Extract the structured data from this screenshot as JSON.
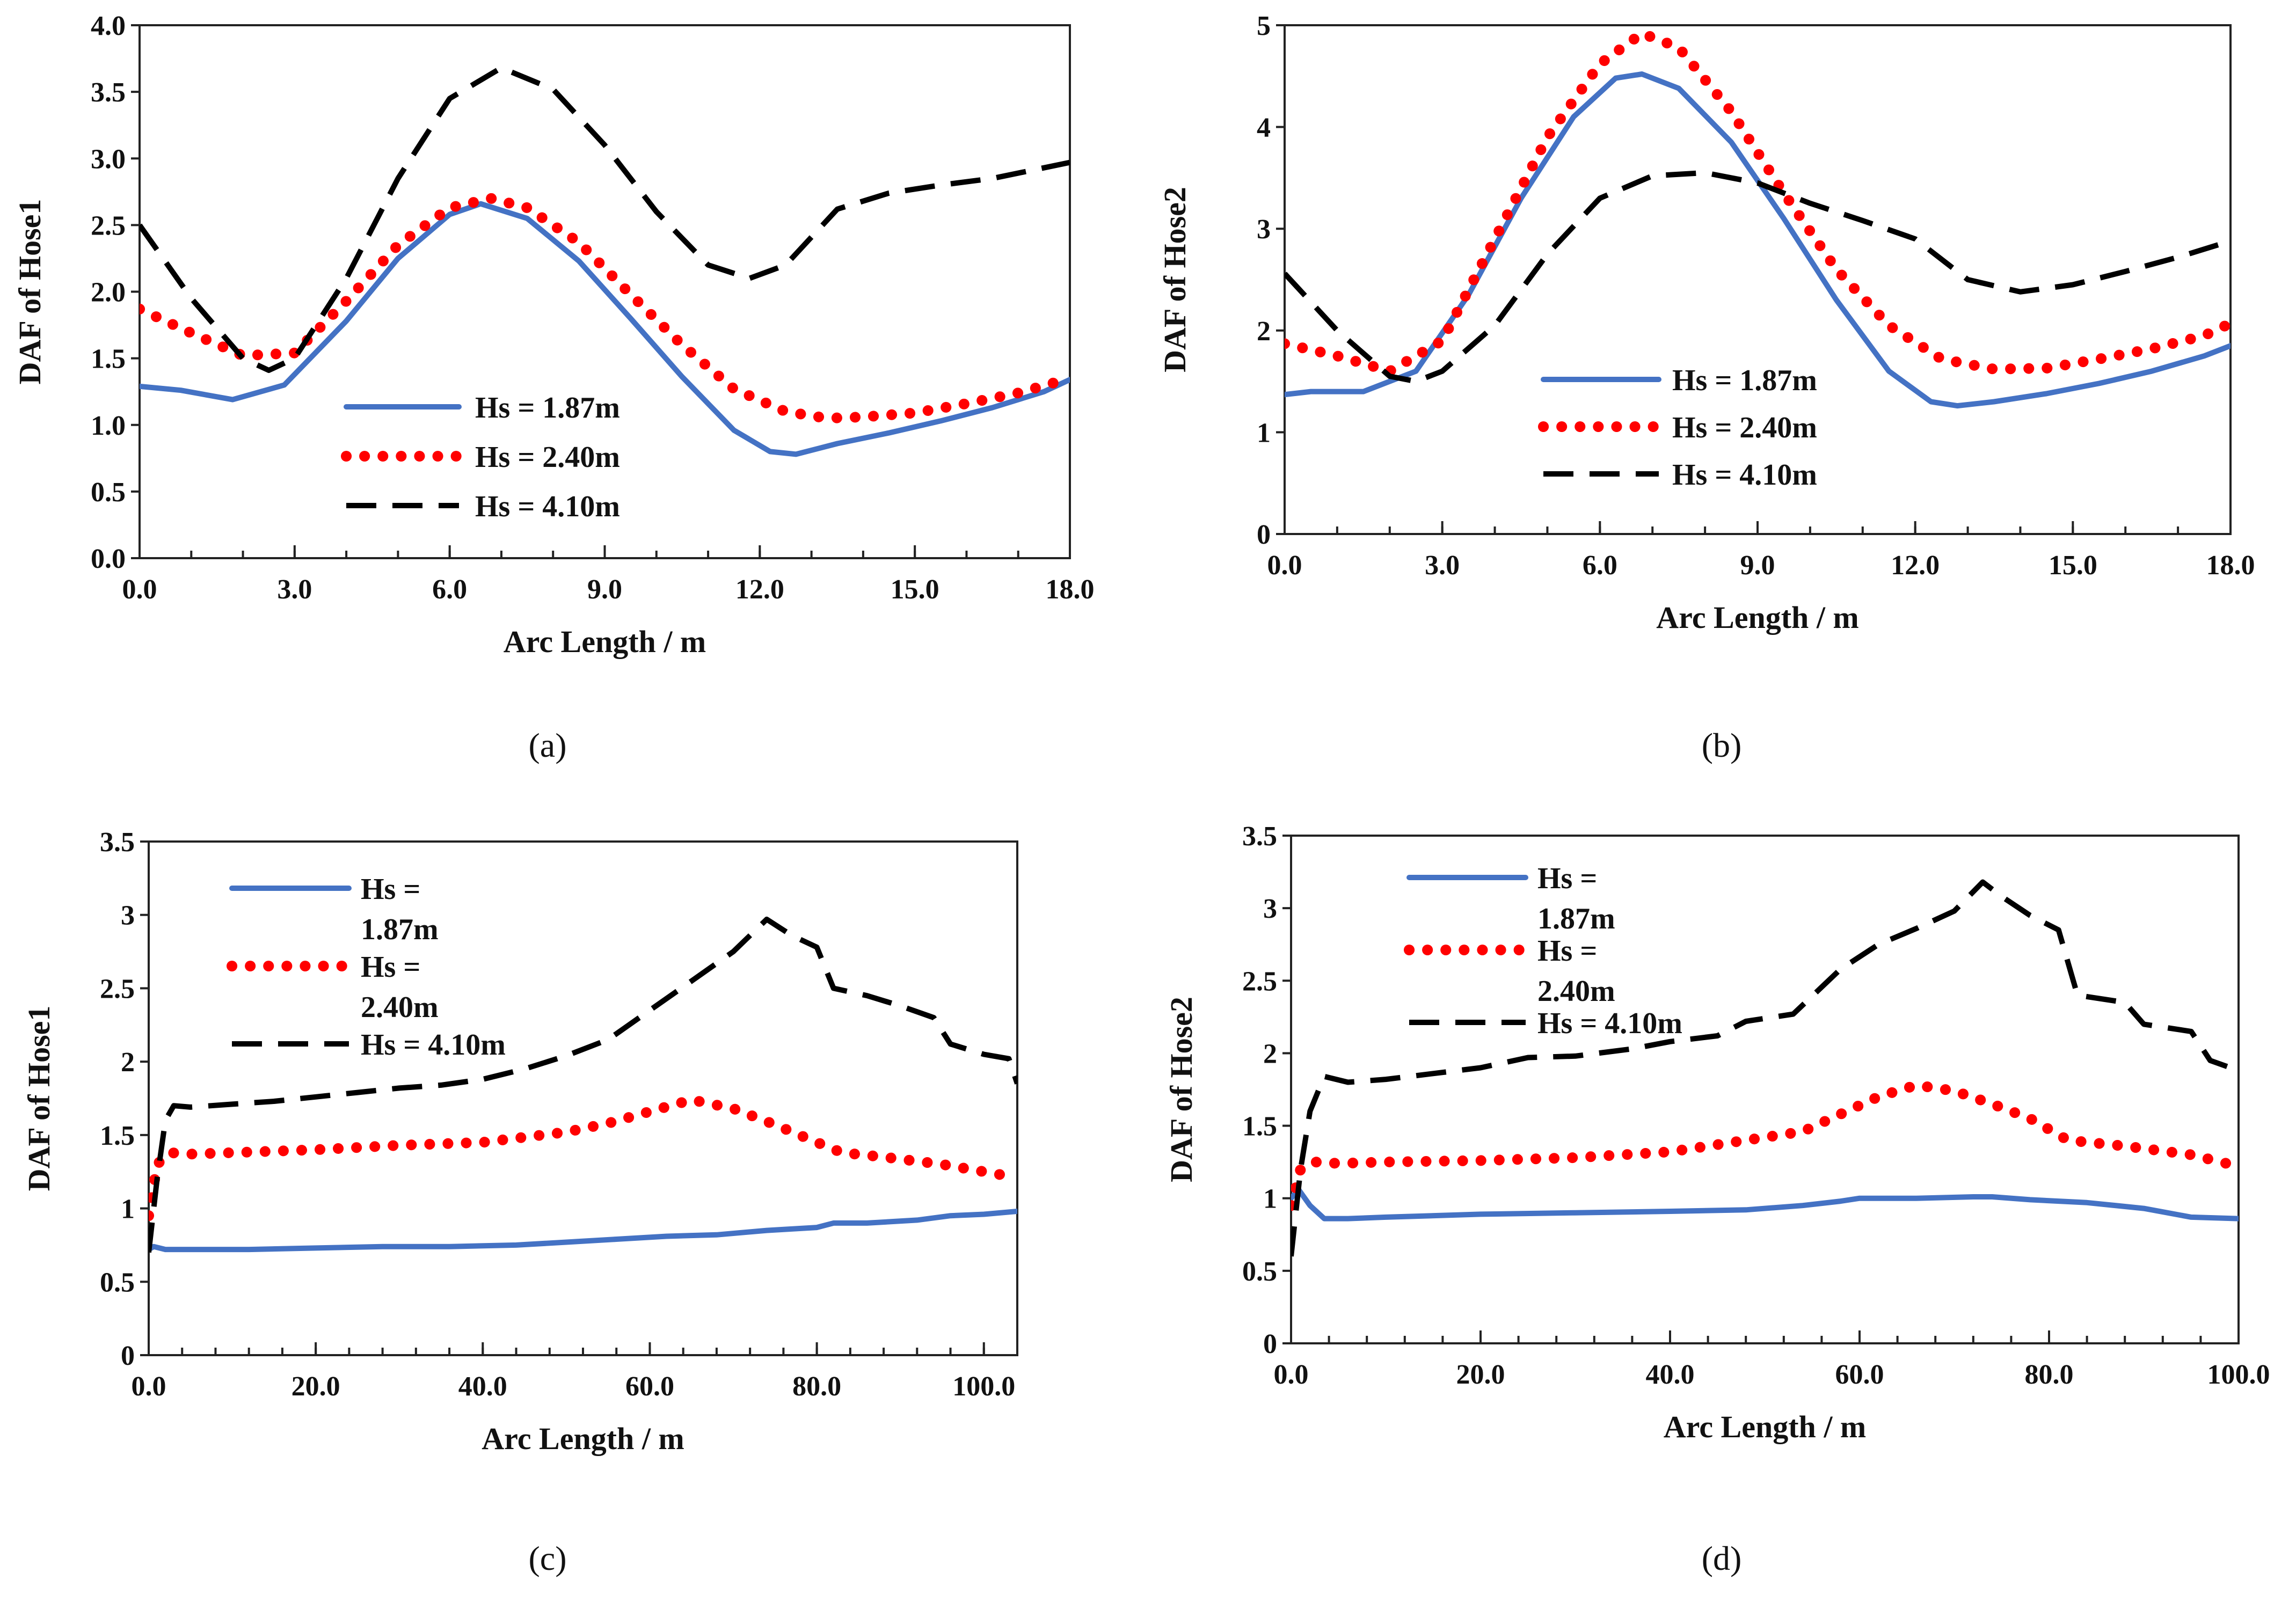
{
  "colors": {
    "series1": "#4472C4",
    "series2": "#FF0000",
    "series3": "#000000"
  },
  "chart_data": [
    {
      "panel": "a",
      "type": "line",
      "caption": "(a)",
      "xlabel": "Arc Length / m",
      "ylabel": "DAF of Hose1",
      "xlim": [
        0,
        18
      ],
      "ylim": [
        0,
        4
      ],
      "xticks": [
        0,
        3,
        6,
        9,
        12,
        15,
        18
      ],
      "xtick_labels": [
        "0.0",
        "3.0",
        "6.0",
        "9.0",
        "12.0",
        "15.0",
        "18.0"
      ],
      "yticks": [
        0,
        0.5,
        1,
        1.5,
        2,
        2.5,
        3,
        3.5,
        4
      ],
      "ytick_labels": [
        "0.0",
        "0.5",
        "1.0",
        "1.5",
        "2.0",
        "2.5",
        "3.0",
        "3.5",
        "4.0"
      ],
      "minor_xstep": 1,
      "legend": "inside-center",
      "series": [
        {
          "name": "Hs = 1.87m",
          "legend_lines": [
            "Hs = 1.87m"
          ],
          "style": "solid",
          "x": [
            0,
            0.8,
            1.8,
            2.8,
            4,
            5,
            6,
            6.6,
            7.5,
            8.5,
            9.5,
            10.5,
            11.5,
            12.2,
            12.7,
            13.5,
            14.5,
            15.5,
            16.5,
            17.5,
            18
          ],
          "y": [
            1.29,
            1.26,
            1.19,
            1.3,
            1.78,
            2.25,
            2.58,
            2.66,
            2.55,
            2.23,
            1.8,
            1.36,
            0.96,
            0.8,
            0.78,
            0.86,
            0.94,
            1.03,
            1.13,
            1.25,
            1.34
          ]
        },
        {
          "name": "Hs = 2.40m",
          "legend_lines": [
            "Hs = 2.40m"
          ],
          "style": "dotted",
          "x": [
            0,
            1,
            2,
            3,
            4,
            5,
            6,
            6.8,
            7.5,
            8.5,
            9.5,
            10.5,
            11.5,
            12.5,
            13.3,
            14,
            15,
            16,
            17,
            18
          ],
          "y": [
            1.87,
            1.69,
            1.52,
            1.54,
            1.93,
            2.35,
            2.63,
            2.7,
            2.63,
            2.37,
            1.98,
            1.6,
            1.27,
            1.1,
            1.05,
            1.06,
            1.09,
            1.16,
            1.24,
            1.35
          ]
        },
        {
          "name": "Hs = 4.10m",
          "legend_lines": [
            "Hs = 4.10m"
          ],
          "style": "dashed",
          "x": [
            0,
            1,
            2,
            2.5,
            3,
            4,
            5,
            6,
            7,
            8,
            9,
            10,
            11,
            11.8,
            12.5,
            13.5,
            14.5,
            15.5,
            16.5,
            18
          ],
          "y": [
            2.5,
            1.95,
            1.5,
            1.41,
            1.5,
            2.1,
            2.85,
            3.45,
            3.68,
            3.52,
            3.1,
            2.6,
            2.2,
            2.1,
            2.2,
            2.62,
            2.74,
            2.8,
            2.85,
            2.97
          ]
        }
      ]
    },
    {
      "panel": "b",
      "type": "line",
      "caption": "(b)",
      "xlabel": "Arc Length / m",
      "ylabel": "DAF of Hose2",
      "xlim": [
        0,
        18
      ],
      "ylim": [
        0,
        5
      ],
      "xticks": [
        0,
        3,
        6,
        9,
        12,
        15,
        18
      ],
      "xtick_labels": [
        "0.0",
        "3.0",
        "6.0",
        "9.0",
        "12.0",
        "15.0",
        "18.0"
      ],
      "yticks": [
        0,
        1,
        2,
        3,
        4,
        5
      ],
      "ytick_labels": [
        "0",
        "1",
        "2",
        "3",
        "4",
        "5"
      ],
      "minor_xstep": 1,
      "legend": "inside-center",
      "series": [
        {
          "name": "Hs = 1.87m",
          "legend_lines": [
            "Hs = 1.87m"
          ],
          "style": "solid",
          "x": [
            0,
            0.5,
            1.5,
            2.5,
            3.5,
            4.5,
            5.5,
            6.3,
            6.8,
            7.5,
            8.5,
            9.5,
            10.5,
            11.5,
            12.3,
            12.8,
            13.5,
            14.5,
            15.5,
            16.5,
            17.5,
            18
          ],
          "y": [
            1.37,
            1.4,
            1.4,
            1.6,
            2.35,
            3.3,
            4.1,
            4.48,
            4.52,
            4.38,
            3.85,
            3.1,
            2.3,
            1.6,
            1.3,
            1.26,
            1.3,
            1.38,
            1.48,
            1.6,
            1.75,
            1.85
          ]
        },
        {
          "name": "Hs = 2.40m",
          "legend_lines": [
            "Hs = 2.40m"
          ],
          "style": "dotted",
          "x": [
            0,
            1,
            2,
            3,
            4,
            5,
            6,
            6.8,
            7.5,
            8.5,
            9.5,
            10.5,
            11.5,
            12.5,
            13.5,
            14.5,
            15.5,
            16.5,
            17.5,
            18
          ],
          "y": [
            1.87,
            1.75,
            1.6,
            1.9,
            2.9,
            3.9,
            4.62,
            4.92,
            4.78,
            4.15,
            3.35,
            2.6,
            2.05,
            1.72,
            1.62,
            1.63,
            1.72,
            1.82,
            1.95,
            2.07
          ]
        },
        {
          "name": "Hs = 4.10m",
          "legend_lines": [
            "Hs = 4.10m"
          ],
          "style": "dashed",
          "x": [
            0,
            1,
            2,
            2.5,
            3,
            4,
            5,
            6,
            7,
            8,
            9,
            10,
            11,
            12,
            13,
            14,
            15,
            16,
            17,
            18
          ],
          "y": [
            2.56,
            2.0,
            1.55,
            1.5,
            1.6,
            2.05,
            2.75,
            3.3,
            3.52,
            3.55,
            3.45,
            3.25,
            3.08,
            2.9,
            2.5,
            2.38,
            2.45,
            2.58,
            2.72,
            2.88
          ]
        }
      ]
    },
    {
      "panel": "c",
      "type": "line",
      "caption": "(c)",
      "xlabel": "Arc Length / m",
      "ylabel": "DAF of Hose1",
      "xlim": [
        0,
        104
      ],
      "ylim": [
        0,
        3.5
      ],
      "xticks": [
        0,
        20,
        40,
        60,
        80,
        100
      ],
      "xtick_labels": [
        "0.0",
        "20.0",
        "40.0",
        "60.0",
        "80.0",
        "100.0"
      ],
      "yticks": [
        0,
        0.5,
        1,
        1.5,
        2,
        2.5,
        3,
        3.5
      ],
      "ytick_labels": [
        "0",
        "0.5",
        "1",
        "1.5",
        "2",
        "2.5",
        "3",
        "3.5"
      ],
      "minor_xstep": 4,
      "legend": "top-left",
      "series": [
        {
          "name": "Hs = 1.87m",
          "legend_lines": [
            "Hs =",
            "1.87m"
          ],
          "style": "solid",
          "x": [
            0,
            0.6,
            2,
            6,
            12,
            20,
            28,
            36,
            44,
            50,
            56,
            62,
            68,
            74,
            80,
            82,
            86,
            92,
            96,
            100,
            104
          ],
          "y": [
            0.72,
            0.74,
            0.72,
            0.72,
            0.72,
            0.73,
            0.74,
            0.74,
            0.75,
            0.77,
            0.79,
            0.81,
            0.82,
            0.85,
            0.87,
            0.9,
            0.9,
            0.92,
            0.95,
            0.96,
            0.98
          ]
        },
        {
          "name": "Hs = 2.40m",
          "legend_lines": [
            "Hs =",
            "2.40m"
          ],
          "style": "dotted",
          "x": [
            0,
            1,
            2.5,
            5,
            10,
            20,
            30,
            40,
            50,
            55,
            60,
            65,
            70,
            75,
            80,
            83,
            88,
            95,
            100,
            104
          ],
          "y": [
            0.95,
            1.3,
            1.38,
            1.37,
            1.38,
            1.4,
            1.43,
            1.45,
            1.52,
            1.58,
            1.66,
            1.74,
            1.68,
            1.57,
            1.45,
            1.38,
            1.35,
            1.3,
            1.25,
            1.21
          ]
        },
        {
          "name": "Hs = 4.10m",
          "legend_lines": [
            "Hs = 4.10m"
          ],
          "style": "dashed",
          "x": [
            0,
            1,
            2,
            3,
            5,
            10,
            15,
            20,
            25,
            30,
            35,
            40,
            45,
            50,
            55,
            60,
            65,
            70,
            74,
            77,
            80,
            82,
            86,
            90,
            94,
            96,
            100,
            103,
            104
          ],
          "y": [
            0.7,
            1.2,
            1.6,
            1.7,
            1.69,
            1.71,
            1.73,
            1.76,
            1.79,
            1.82,
            1.84,
            1.88,
            1.95,
            2.04,
            2.15,
            2.35,
            2.55,
            2.75,
            2.97,
            2.86,
            2.78,
            2.5,
            2.45,
            2.38,
            2.3,
            2.12,
            2.05,
            2.02,
            1.85
          ]
        }
      ]
    },
    {
      "panel": "d",
      "type": "line",
      "caption": "(d)",
      "xlabel": "Arc Length / m",
      "ylabel": "DAF of Hose2",
      "xlim": [
        0,
        100
      ],
      "ylim": [
        0,
        3.5
      ],
      "xticks": [
        0,
        20,
        40,
        60,
        80,
        100
      ],
      "xtick_labels": [
        "0.0",
        "20.0",
        "40.0",
        "60.0",
        "80.0",
        "100.0"
      ],
      "yticks": [
        0,
        0.5,
        1,
        1.5,
        2,
        2.5,
        3,
        3.5
      ],
      "ytick_labels": [
        "0",
        "0.5",
        "1",
        "1.5",
        "2",
        "2.5",
        "3",
        "3.5"
      ],
      "minor_xstep": 4,
      "legend": "top-left",
      "series": [
        {
          "name": "Hs = 1.87m",
          "legend_lines": [
            "Hs =",
            "1.87m"
          ],
          "style": "solid",
          "x": [
            0,
            0.8,
            2,
            3.5,
            6,
            10,
            20,
            30,
            40,
            48,
            54,
            58,
            60,
            66,
            72,
            74,
            78,
            84,
            90,
            95,
            100
          ],
          "y": [
            1.0,
            1.06,
            0.95,
            0.86,
            0.86,
            0.87,
            0.89,
            0.9,
            0.91,
            0.92,
            0.95,
            0.98,
            1.0,
            1.0,
            1.01,
            1.01,
            0.99,
            0.97,
            0.93,
            0.87,
            0.86
          ]
        },
        {
          "name": "Hs = 2.40m",
          "legend_lines": [
            "Hs =",
            "2.40m"
          ],
          "style": "dotted",
          "x": [
            0,
            1,
            2.5,
            5,
            10,
            20,
            30,
            40,
            48,
            54,
            58,
            62,
            66,
            70,
            74,
            78,
            82,
            88,
            95,
            100
          ],
          "y": [
            0.95,
            1.2,
            1.25,
            1.24,
            1.25,
            1.26,
            1.28,
            1.32,
            1.4,
            1.46,
            1.58,
            1.7,
            1.78,
            1.74,
            1.65,
            1.55,
            1.4,
            1.36,
            1.3,
            1.22
          ]
        },
        {
          "name": "Hs = 4.10m",
          "legend_lines": [
            "Hs = 4.10m"
          ],
          "style": "dashed",
          "x": [
            0,
            1,
            2,
            3.5,
            6,
            10,
            20,
            25,
            30,
            36,
            40,
            45,
            48,
            53,
            58,
            62,
            66,
            70,
            73,
            75,
            78,
            81,
            83,
            88,
            90,
            95,
            97,
            100
          ],
          "y": [
            0.6,
            1.2,
            1.6,
            1.84,
            1.8,
            1.82,
            1.9,
            1.97,
            1.98,
            2.03,
            2.08,
            2.12,
            2.22,
            2.27,
            2.58,
            2.75,
            2.86,
            2.98,
            3.18,
            3.08,
            2.95,
            2.85,
            2.4,
            2.35,
            2.2,
            2.15,
            1.95,
            1.88
          ]
        }
      ]
    }
  ]
}
